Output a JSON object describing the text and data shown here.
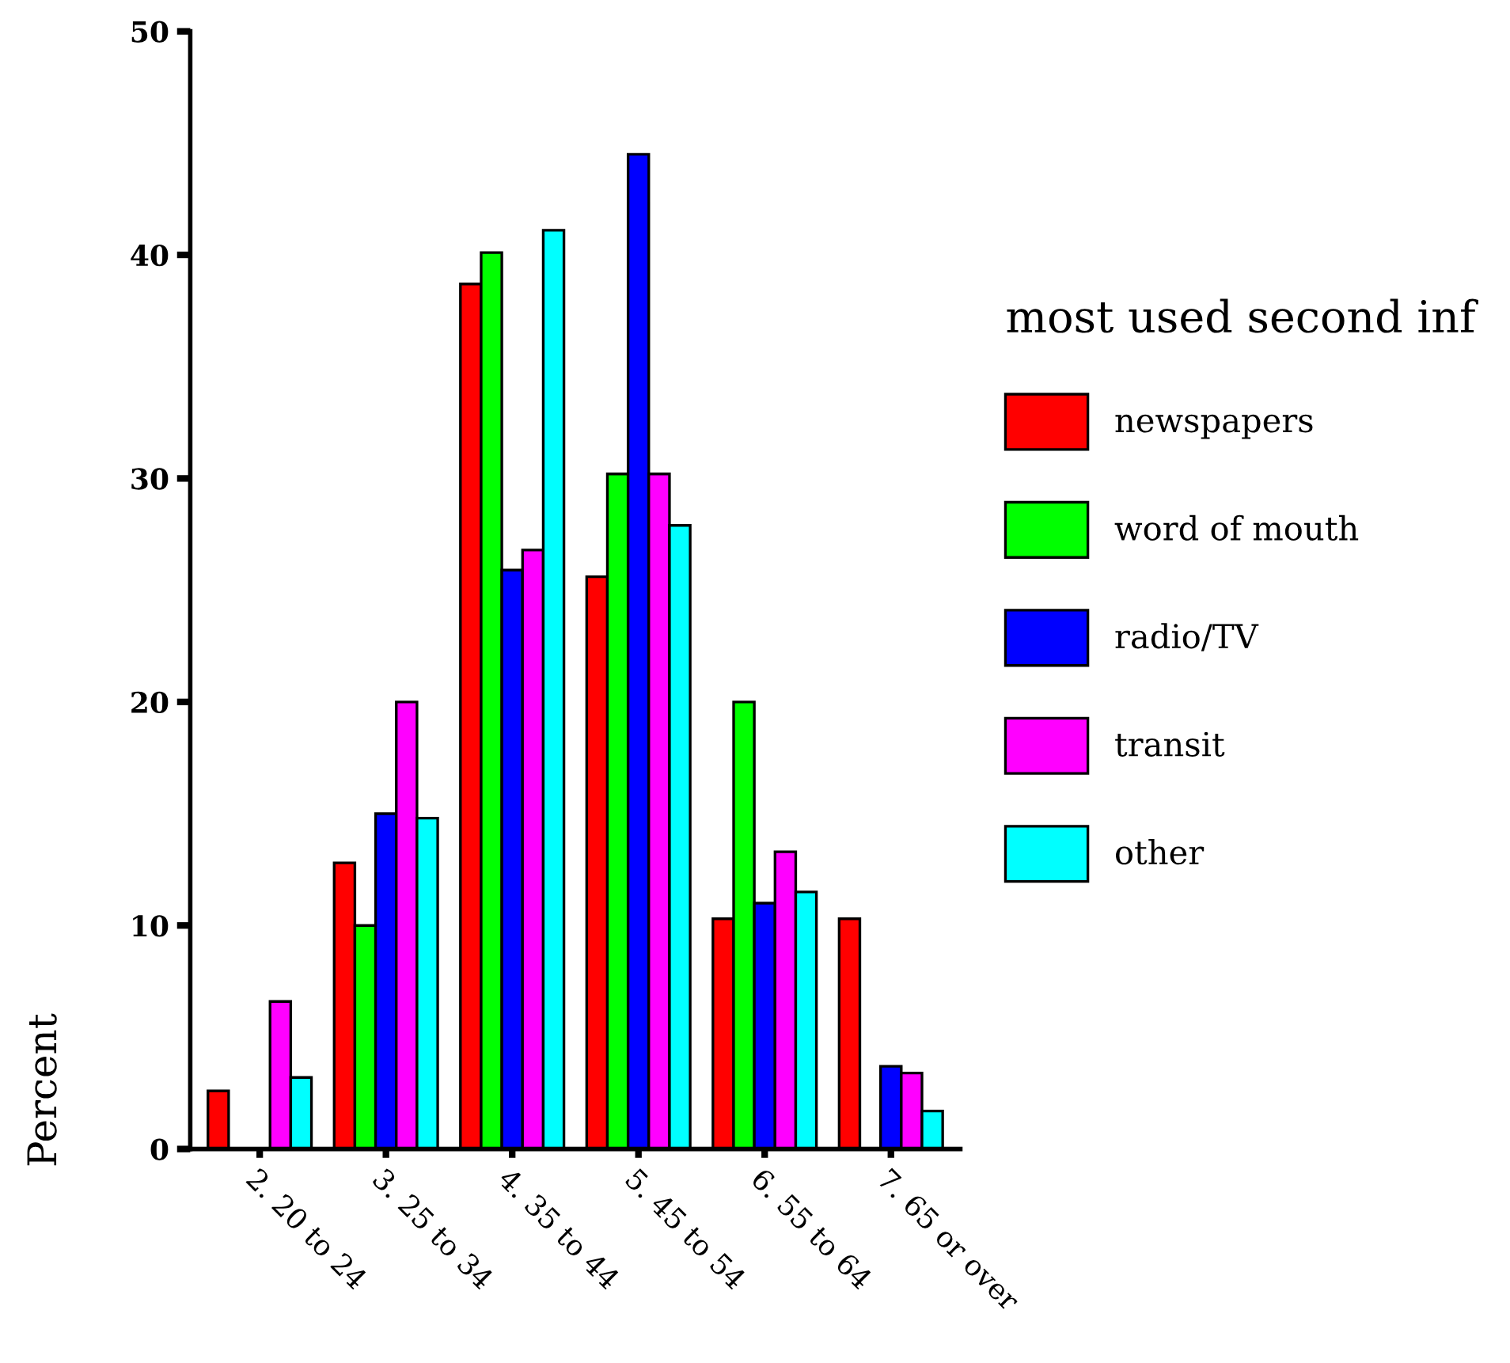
{
  "chart_data": {
    "type": "bar",
    "ylabel": "Percent",
    "legend_title": "most used second inf",
    "categories": [
      "2. 20 to 24",
      "3. 25 to 34",
      "4. 35 to 44",
      "5. 45 to 54",
      "6. 55 to 64",
      "7. 65 or over"
    ],
    "series": [
      {
        "name": "newspapers",
        "color": "#ff0000",
        "values": [
          2.6,
          12.8,
          38.7,
          25.6,
          10.3,
          10.3
        ]
      },
      {
        "name": "word of mouth",
        "color": "#00ff00",
        "values": [
          null,
          10,
          40.1,
          30.2,
          20,
          null
        ]
      },
      {
        "name": "radio/TV",
        "color": "#0000ff",
        "values": [
          null,
          15,
          25.9,
          44.5,
          11,
          3.7
        ]
      },
      {
        "name": "transit",
        "color": "#ff00ff",
        "values": [
          6.6,
          20,
          26.8,
          30.2,
          13.3,
          3.4
        ]
      },
      {
        "name": "other",
        "color": "#00ffff",
        "values": [
          3.2,
          14.8,
          41.1,
          27.9,
          11.5,
          1.7
        ]
      }
    ],
    "ylim": [
      0,
      50
    ],
    "yticks": [
      0,
      10,
      20,
      30,
      40,
      50
    ],
    "grid": false,
    "legend": "right"
  }
}
